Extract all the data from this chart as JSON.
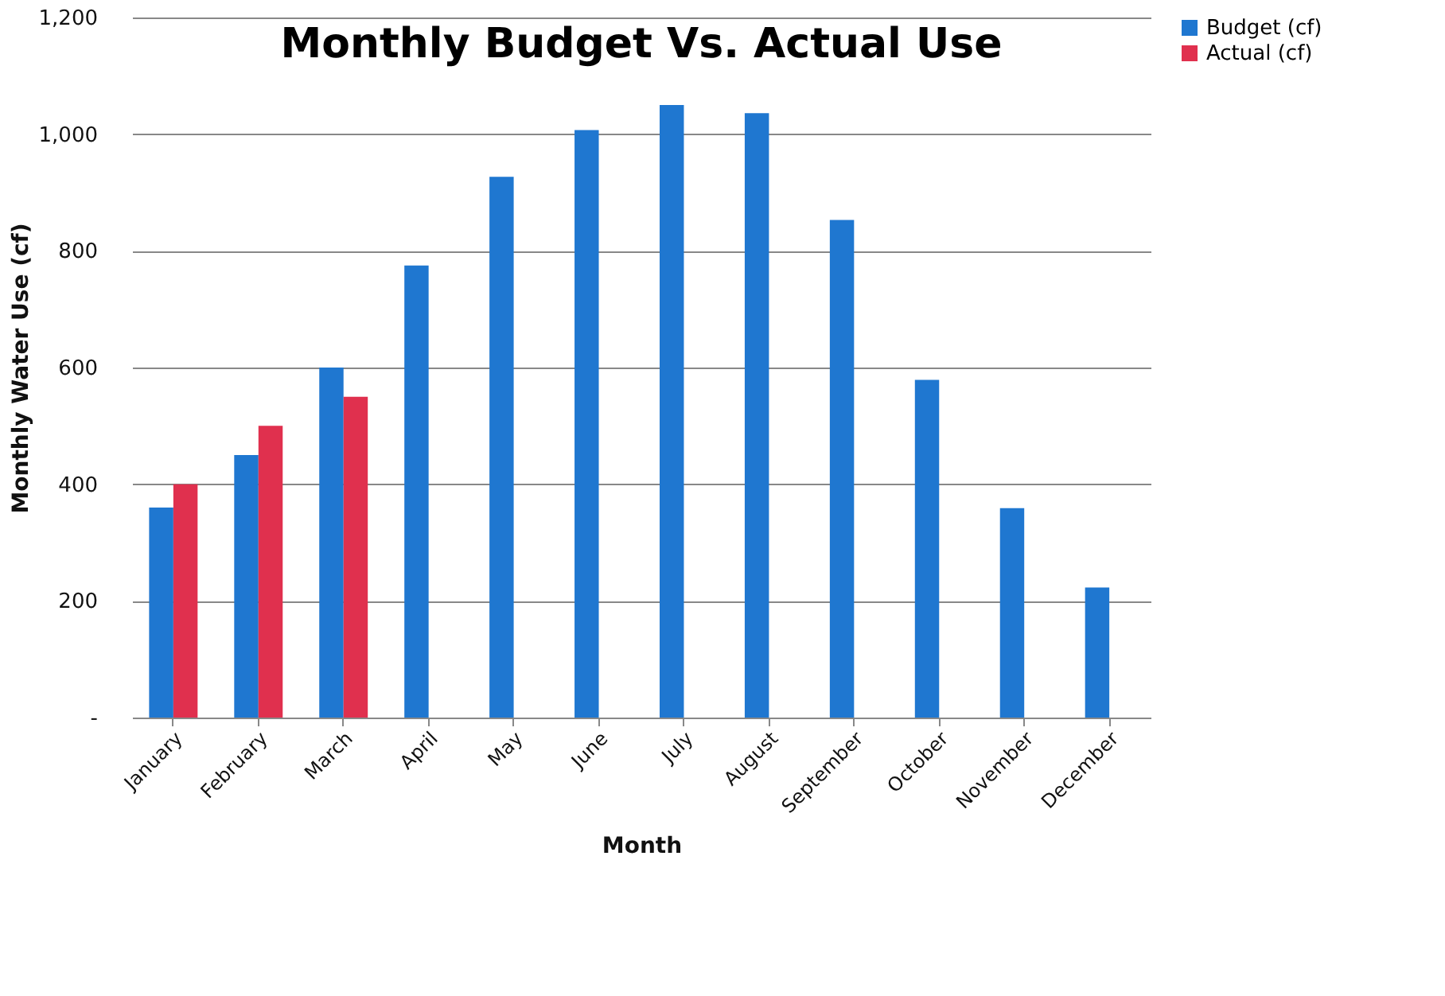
{
  "chart_data": {
    "type": "bar",
    "title": "Monthly Budget Vs. Actual Use",
    "xlabel": "Month",
    "ylabel": "Monthly  Water Use (cf)",
    "categories": [
      "January",
      "February",
      "March",
      "April",
      "May",
      "June",
      "July",
      "August",
      "September",
      "October",
      "November",
      "December"
    ],
    "series": [
      {
        "name": "Budget (cf)",
        "color": "#1f77d0",
        "values": [
          360,
          450,
          600,
          775,
          927,
          1007,
          1050,
          1036,
          853,
          579,
          359,
          223
        ]
      },
      {
        "name": "Actual (cf)",
        "color": "#e0304e",
        "values": [
          400,
          500,
          550,
          null,
          null,
          null,
          null,
          null,
          null,
          null,
          null,
          null
        ]
      }
    ],
    "ylim": [
      0,
      1200
    ],
    "yticks": [
      {
        "value": 0,
        "label": "-"
      },
      {
        "value": 200,
        "label": "200"
      },
      {
        "value": 400,
        "label": "400"
      },
      {
        "value": 600,
        "label": "600"
      },
      {
        "value": 800,
        "label": "800"
      },
      {
        "value": 1000,
        "label": "1,000"
      },
      {
        "value": 1200,
        "label": "1,200"
      }
    ],
    "grid": "y",
    "legend": "right"
  }
}
